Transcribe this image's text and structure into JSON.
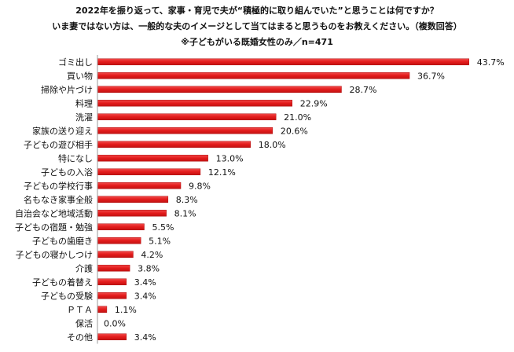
{
  "title_lines": [
    "2022年を振り返って、家事・育児で夫が“積極的に取り組んでいた”と思うことは何ですか？",
    "いま妻ではない方は、一般的な夫のイメージとして当てはまると思うものをお教えください。（複数回答）",
    "※子どもがいる既婚女性のみ／n=471"
  ],
  "colors": {
    "bar": "#e31b1b",
    "bar_edge": "#b01010",
    "axis": "#9a9a9a"
  },
  "chart_data": {
    "type": "bar",
    "orientation": "horizontal",
    "title": "2022年を振り返って、家事・育児で夫が“積極的に取り組んでいた”と思うことは何ですか？",
    "unit": "%",
    "grid": false,
    "categories": [
      "ゴミ出し",
      "買い物",
      "掃除や片づけ",
      "料理",
      "洗濯",
      "家族の送り迎え",
      "子どもの遊び相手",
      "特になし",
      "子どもの入浴",
      "子どもの学校行事",
      "名もなき家事全般",
      "自治会など地域活動",
      "子どもの宿題・勉強",
      "子どもの歯磨き",
      "子どもの寝かしつけ",
      "介護",
      "子どもの着替え",
      "子どもの受験",
      "ＰＴＡ",
      "保活",
      "その他"
    ],
    "values": [
      43.7,
      36.7,
      28.7,
      22.9,
      21.0,
      20.6,
      18.0,
      13.0,
      12.1,
      9.8,
      8.3,
      8.1,
      5.5,
      5.1,
      4.2,
      3.8,
      3.4,
      3.4,
      1.1,
      0.0,
      3.4
    ],
    "value_labels": [
      "43.7%",
      "36.7%",
      "28.7%",
      "22.9%",
      "21.0%",
      "20.6%",
      "18.0%",
      "13.0%",
      "12.1%",
      "9.8%",
      "8.3%",
      "8.1%",
      "5.5%",
      "5.1%",
      "4.2%",
      "3.8%",
      "3.4%",
      "3.4%",
      "1.1%",
      "0.0%",
      "3.4%"
    ],
    "xlim": [
      0,
      44
    ]
  }
}
